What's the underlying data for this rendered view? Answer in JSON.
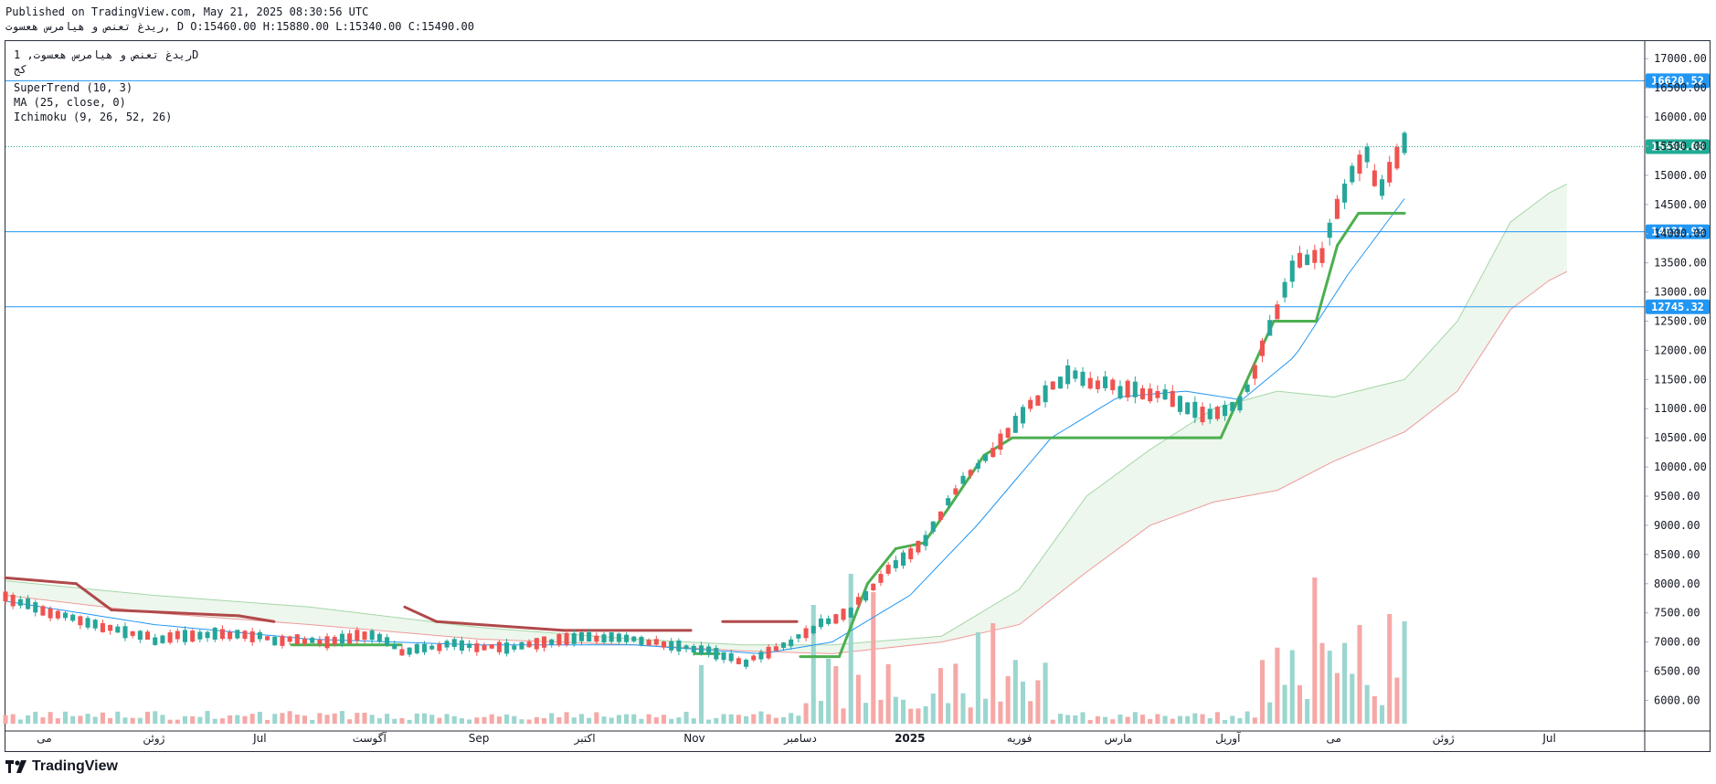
{
  "header": {
    "published": "Published on TradingView.com, May 21, 2025 08:30:56 UTC",
    "ohlc": "ریدغ تعنص و هیامرس هعسوت, D O:15460.00 H:15880.00 L:15340.00 C:15490.00"
  },
  "legend": {
    "symbol": "ریدغ تعنص و هیامرس هعسوت, 1D",
    "exchange": "کج",
    "indicators": [
      "SuperTrend (10, 3)",
      "MA (25, close, 0)",
      "Ichimoku (9, 26, 52, 26)"
    ]
  },
  "footer": {
    "brand": "TradingView"
  },
  "colors": {
    "up": "#26a69a",
    "down": "#ef5350",
    "vol_up": "#9bd6cf",
    "vol_down": "#f5a8a6",
    "hline": "#2196f3",
    "ma": "#2196f3",
    "supertrend_up": "#4caf50",
    "supertrend_down": "#b0494a",
    "last_price": "#22ab94"
  },
  "chart_data": {
    "type": "candlestick",
    "y_axis": {
      "ticks": [
        "17000.00",
        "16500.00",
        "16000.00",
        "15500.00",
        "15000.00",
        "14500.00",
        "14000.00",
        "13500.00",
        "13000.00",
        "12500.00",
        "12000.00",
        "11500.00",
        "11000.00",
        "10500.00",
        "10000.00",
        "9500.00",
        "9000.00",
        "8500.00",
        "8000.00",
        "7500.00",
        "7000.00",
        "6500.00",
        "6000.00"
      ],
      "range": [
        5600,
        17300
      ]
    },
    "x_axis": {
      "labels": [
        "می",
        "ژوئن",
        "Jul",
        "آگوست",
        "Sep",
        "اکتبر",
        "Nov",
        "دسامبر",
        "2025",
        "فوریه",
        "مارس",
        "آوریل",
        "می",
        "ژوئن",
        "Jul"
      ],
      "label_months": [
        "2024-05",
        "2024-06",
        "2024-07",
        "2024-08",
        "2024-09",
        "2024-10",
        "2024-11",
        "2024-12",
        "2025-01",
        "2025-02",
        "2025-03",
        "2025-04",
        "2025-05",
        "2025-06",
        "2025-07"
      ],
      "range": [
        "2024-04-20",
        "2025-07-28"
      ]
    },
    "horizontal_lines": [
      {
        "value": 16620.52,
        "label": "16620.52"
      },
      {
        "value": 14031.93,
        "label": "14031.93"
      },
      {
        "value": 12745.32,
        "label": "12745.32"
      }
    ],
    "last_price": {
      "value": 15490.0,
      "label": "15490.00"
    },
    "price_path": [
      [
        "2024-04-20",
        7750
      ],
      [
        "2024-05-01",
        7550
      ],
      [
        "2024-05-15",
        7300
      ],
      [
        "2024-06-01",
        7050
      ],
      [
        "2024-06-20",
        7150
      ],
      [
        "2024-07-05",
        7050
      ],
      [
        "2024-07-20",
        7000
      ],
      [
        "2024-08-01",
        7150
      ],
      [
        "2024-08-10",
        6850
      ],
      [
        "2024-08-25",
        6950
      ],
      [
        "2024-09-10",
        6900
      ],
      [
        "2024-09-25",
        7050
      ],
      [
        "2024-10-10",
        7100
      ],
      [
        "2024-10-25",
        6950
      ],
      [
        "2024-11-05",
        6850
      ],
      [
        "2024-11-15",
        6650
      ],
      [
        "2024-11-25",
        6900
      ],
      [
        "2024-12-05",
        7250
      ],
      [
        "2024-12-15",
        7500
      ],
      [
        "2024-12-25",
        8200
      ],
      [
        "2025-01-05",
        8700
      ],
      [
        "2025-01-15",
        9700
      ],
      [
        "2025-01-25",
        10300
      ],
      [
        "2025-02-05",
        11100
      ],
      [
        "2025-02-15",
        11600
      ],
      [
        "2025-02-25",
        11400
      ],
      [
        "2025-03-05",
        11300
      ],
      [
        "2025-03-15",
        11200
      ],
      [
        "2025-03-25",
        10900
      ],
      [
        "2025-04-05",
        11100
      ],
      [
        "2025-04-12",
        12200
      ],
      [
        "2025-04-20",
        13500
      ],
      [
        "2025-04-28",
        13700
      ],
      [
        "2025-05-05",
        14900
      ],
      [
        "2025-05-10",
        15400
      ],
      [
        "2025-05-14",
        14700
      ],
      [
        "2025-05-21",
        15490
      ]
    ],
    "candle_count": 188,
    "supertrend": [
      [
        "2024-04-20",
        8100,
        "down"
      ],
      [
        "2024-05-10",
        8000,
        "down"
      ],
      [
        "2024-05-20",
        7550,
        "down"
      ],
      [
        "2024-06-25",
        7450,
        "down"
      ],
      [
        "2024-07-05",
        7350,
        "down"
      ],
      [
        "2024-07-10",
        6950,
        "up"
      ],
      [
        "2024-08-10",
        6950,
        "up"
      ],
      [
        "2024-08-11",
        7600,
        "down"
      ],
      [
        "2024-08-20",
        7350,
        "down"
      ],
      [
        "2024-09-25",
        7200,
        "down"
      ],
      [
        "2024-10-31",
        7200,
        "down"
      ],
      [
        "2024-11-01",
        6800,
        "up"
      ],
      [
        "2024-11-08",
        6800,
        "up"
      ],
      [
        "2024-11-09",
        7350,
        "down"
      ],
      [
        "2024-11-30",
        7350,
        "down"
      ],
      [
        "2024-12-01",
        6750,
        "up"
      ],
      [
        "2024-12-12",
        6750,
        "up"
      ],
      [
        "2024-12-20",
        8000,
        "up"
      ],
      [
        "2024-12-28",
        8600,
        "up"
      ],
      [
        "2025-01-05",
        8700,
        "up"
      ],
      [
        "2025-01-12",
        9300,
        "up"
      ],
      [
        "2025-01-22",
        10200,
        "up"
      ],
      [
        "2025-01-30",
        10500,
        "up"
      ],
      [
        "2025-03-30",
        10500,
        "up"
      ],
      [
        "2025-04-08",
        11700,
        "up"
      ],
      [
        "2025-04-14",
        12500,
        "up"
      ],
      [
        "2025-04-26",
        12500,
        "up"
      ],
      [
        "2025-05-02",
        13800,
        "up"
      ],
      [
        "2025-05-08",
        14350,
        "up"
      ],
      [
        "2025-05-21",
        14350,
        "up"
      ]
    ],
    "ma25": [
      [
        "2024-04-20",
        7700
      ],
      [
        "2024-06-01",
        7300
      ],
      [
        "2024-07-15",
        7050
      ],
      [
        "2024-09-01",
        6950
      ],
      [
        "2024-10-15",
        6950
      ],
      [
        "2024-11-20",
        6800
      ],
      [
        "2024-12-10",
        7000
      ],
      [
        "2025-01-01",
        7800
      ],
      [
        "2025-01-20",
        9000
      ],
      [
        "2025-02-10",
        10500
      ],
      [
        "2025-03-01",
        11200
      ],
      [
        "2025-03-20",
        11300
      ],
      [
        "2025-04-05",
        11150
      ],
      [
        "2025-04-20",
        11900
      ],
      [
        "2025-05-05",
        13300
      ],
      [
        "2025-05-21",
        14600
      ]
    ],
    "cloud": [
      [
        "2024-04-20",
        8050,
        7800
      ],
      [
        "2024-06-01",
        7800,
        7500
      ],
      [
        "2024-07-15",
        7600,
        7300
      ],
      [
        "2024-09-01",
        7250,
        7050
      ],
      [
        "2024-10-15",
        7050,
        6950
      ],
      [
        "2024-11-15",
        6950,
        6850
      ],
      [
        "2024-12-10",
        6950,
        6800
      ],
      [
        "2025-01-10",
        7100,
        7000
      ],
      [
        "2025-02-01",
        7900,
        7300
      ],
      [
        "2025-02-20",
        9500,
        8200
      ],
      [
        "2025-03-10",
        10300,
        9000
      ],
      [
        "2025-03-28",
        11000,
        9400
      ],
      [
        "2025-04-15",
        11300,
        9600
      ],
      [
        "2025-05-01",
        11200,
        10100
      ],
      [
        "2025-05-21",
        11500,
        10600
      ],
      [
        "2025-06-05",
        12500,
        11300
      ],
      [
        "2025-06-20",
        14200,
        12700
      ],
      [
        "2025-07-01",
        14700,
        13200
      ],
      [
        "2025-07-06",
        14850,
        13350
      ]
    ],
    "volume": {
      "axis_max": 1,
      "note": "relative bar heights, 0-1",
      "spikes": [
        [
          "2024-11-03",
          0.32
        ],
        [
          "2024-12-05",
          0.65
        ],
        [
          "2024-12-15",
          0.82
        ],
        [
          "2024-12-22",
          0.72
        ],
        [
          "2025-01-20",
          0.5
        ],
        [
          "2025-01-25",
          0.55
        ],
        [
          "2025-04-26",
          0.8
        ],
        [
          "2025-05-08",
          0.54
        ],
        [
          "2025-05-16",
          0.6
        ],
        [
          "2025-05-21",
          0.56
        ]
      ]
    }
  }
}
